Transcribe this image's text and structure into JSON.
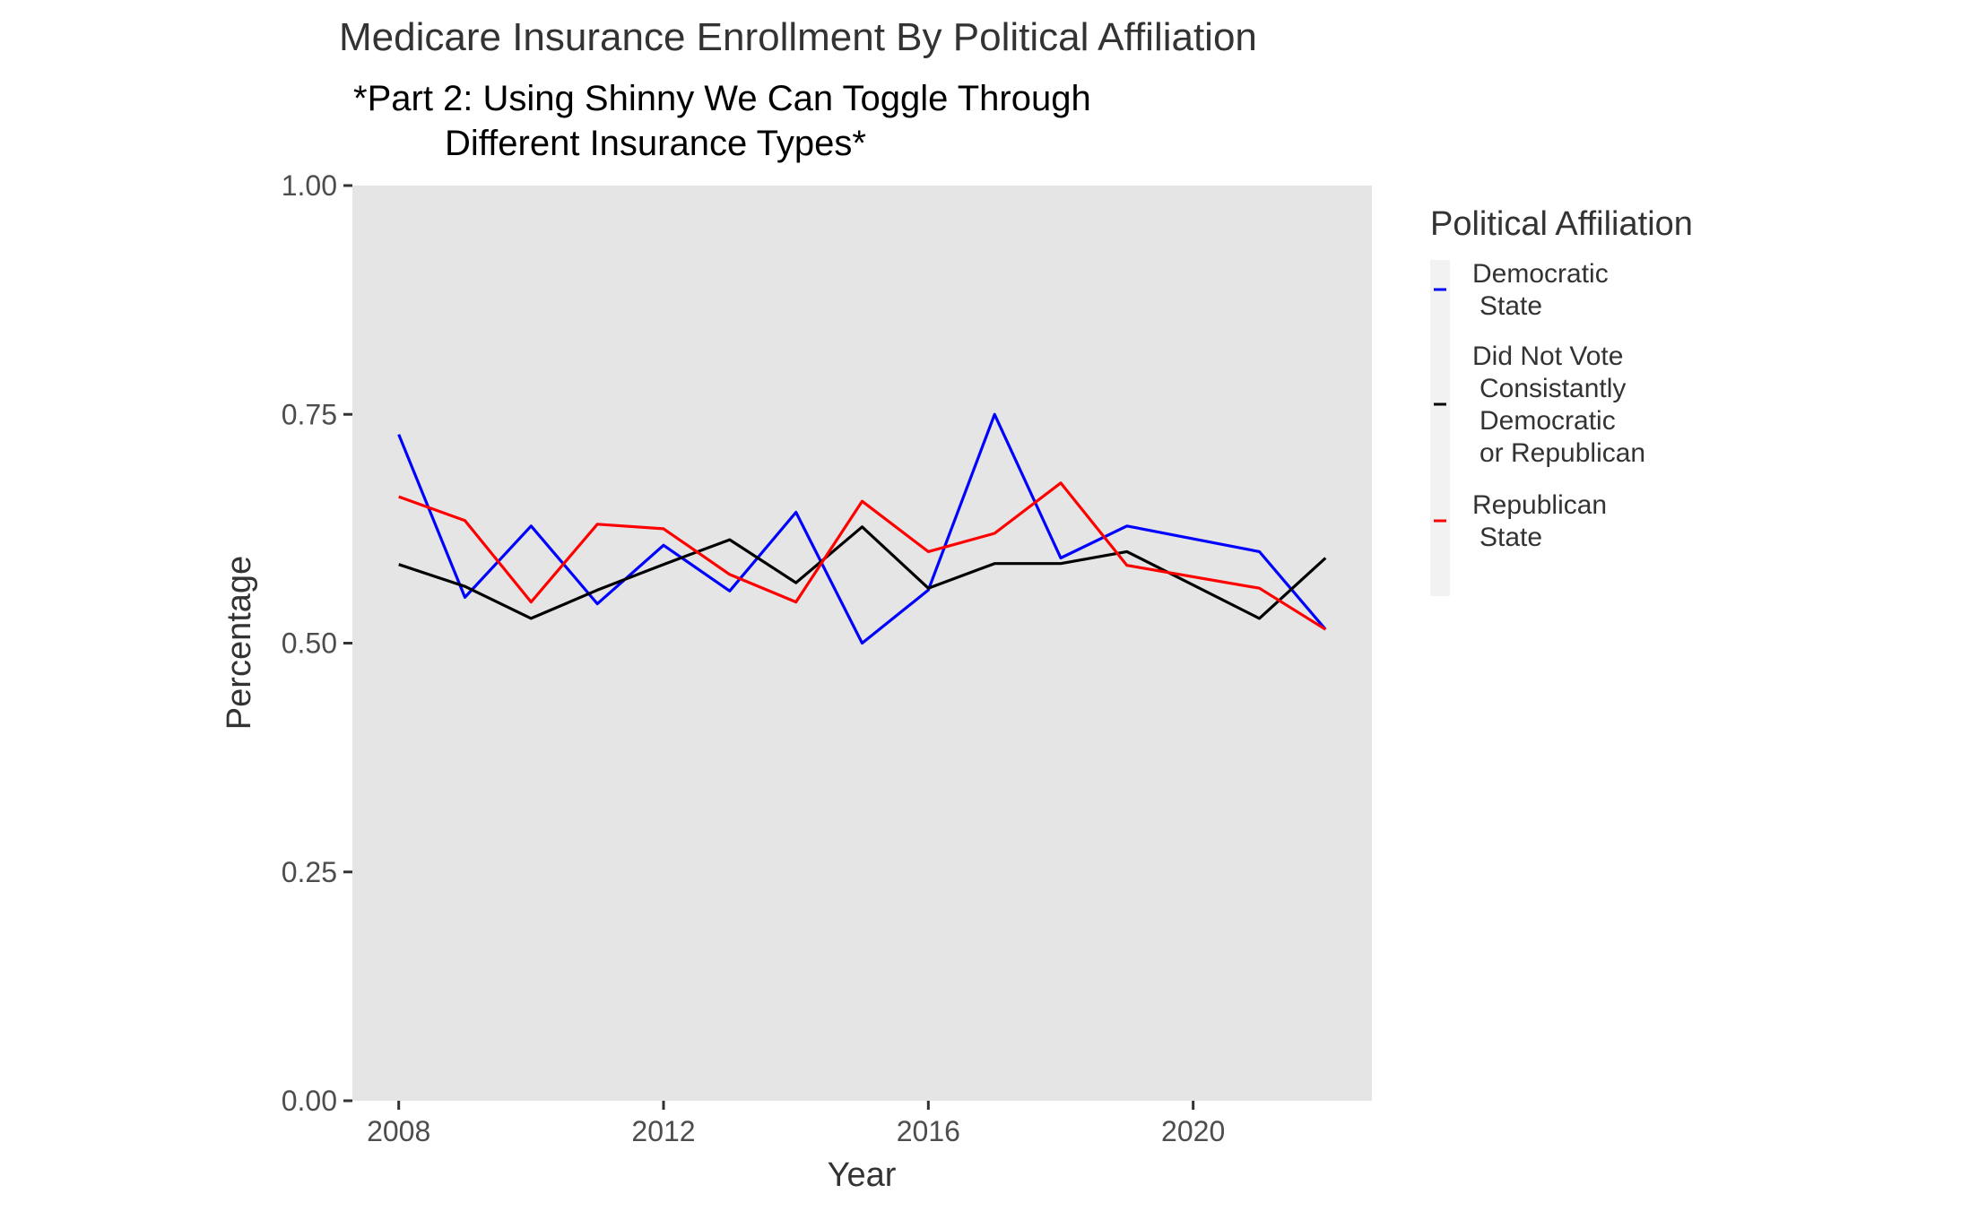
{
  "chart_data": {
    "type": "line",
    "title": "Medicare Insurance Enrollment By Political Affiliation",
    "subtitle_lines": [
      "*Part 2: Using Shinny We Can Toggle Through",
      "Different Insurance Types*"
    ],
    "xlabel": "Year",
    "ylabel": "Percentage",
    "xlim": [
      2007.3,
      2022.7
    ],
    "ylim": [
      0,
      1
    ],
    "x_ticks": [
      2008,
      2012,
      2016,
      2020
    ],
    "x_tick_labels": [
      "2008",
      "2012",
      "2016",
      "2020"
    ],
    "y_ticks": [
      0,
      0.25,
      0.5,
      0.75,
      1
    ],
    "y_tick_labels": [
      "0.00",
      "0.25",
      "0.50",
      "0.75",
      "1.00"
    ],
    "grid": false,
    "panel_background": "#e5e5e5",
    "legend": {
      "title": "Political Affiliation",
      "placement": "right",
      "entries": [
        {
          "lines": [
            "Democratic",
            "State"
          ],
          "color": "#0000ff"
        },
        {
          "lines": [
            "Did Not Vote",
            "Consistantly",
            "Democratic",
            "or Republican"
          ],
          "color": "#000000"
        },
        {
          "lines": [
            "Republican",
            "State"
          ],
          "color": "#ff0000"
        }
      ]
    },
    "series": [
      {
        "name": "Democratic State",
        "color": "#0000ff",
        "x": [
          2008,
          2009,
          2010,
          2011,
          2012,
          2013,
          2014,
          2015,
          2016,
          2017,
          2018,
          2019,
          2021,
          2022
        ],
        "y": [
          0.728,
          0.55,
          0.628,
          0.543,
          0.607,
          0.557,
          0.643,
          0.5,
          0.558,
          0.75,
          0.593,
          0.628,
          0.6,
          0.515
        ]
      },
      {
        "name": "Did Not Vote Consistantly Democratic or Republican",
        "color": "#000000",
        "x": [
          2008,
          2009,
          2010,
          2011,
          2012,
          2013,
          2014,
          2015,
          2016,
          2017,
          2018,
          2019,
          2021,
          2022
        ],
        "y": [
          0.586,
          0.562,
          0.527,
          0.558,
          0.586,
          0.613,
          0.566,
          0.627,
          0.56,
          0.587,
          0.587,
          0.6,
          0.527,
          0.593
        ]
      },
      {
        "name": "Republican State",
        "color": "#ff0000",
        "x": [
          2008,
          2009,
          2010,
          2011,
          2012,
          2013,
          2014,
          2015,
          2016,
          2017,
          2018,
          2019,
          2021,
          2022
        ],
        "y": [
          0.66,
          0.634,
          0.545,
          0.63,
          0.625,
          0.575,
          0.545,
          0.655,
          0.6,
          0.62,
          0.675,
          0.585,
          0.56,
          0.515
        ]
      }
    ]
  }
}
